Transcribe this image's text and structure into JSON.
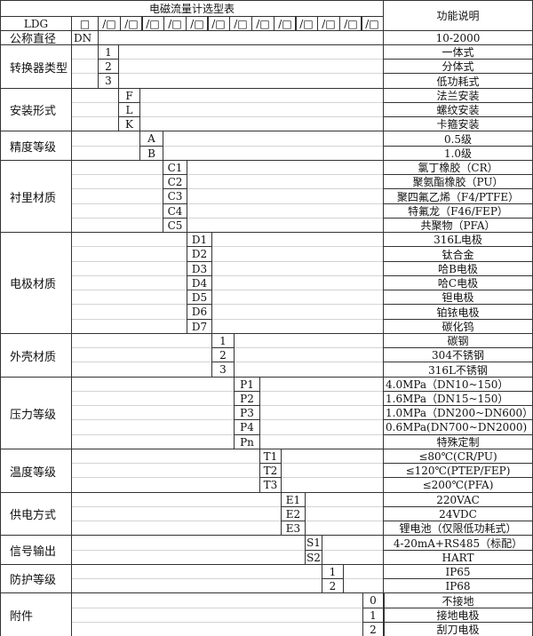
{
  "title": "电磁流量计选型表",
  "function_header": "功能说明",
  "model_row": {
    "model": "LDG",
    "first_box": "□",
    "slot_box": "/□",
    "slot_count": 13
  },
  "dn_row": {
    "label": "公称直径",
    "code": "DN",
    "desc": "10-2000"
  },
  "sections": [
    {
      "label": "转换器类型",
      "codes": [
        "1",
        "2",
        "3"
      ],
      "descs": [
        "一体式",
        "分体式",
        "低功耗式"
      ]
    },
    {
      "label": "安装形式",
      "codes": [
        "F",
        "L",
        "K"
      ],
      "descs": [
        "法兰安装",
        "螺纹安装",
        "卡箍安装"
      ]
    },
    {
      "label": "精度等级",
      "codes": [
        "A",
        "B"
      ],
      "descs": [
        "0.5级",
        "1.0级"
      ]
    },
    {
      "label": "衬里材质",
      "codes": [
        "C1",
        "C2",
        "C3",
        "C4",
        "C5"
      ],
      "descs": [
        "氯丁橡胶（CR）",
        "聚氨酯橡胶（PU）",
        "聚四氟乙烯（F4/PTFE）",
        "特氟龙（F46/FEP）",
        "共聚物（PFA）"
      ]
    },
    {
      "label": "电极材质",
      "codes": [
        "D1",
        "D2",
        "D3",
        "D4",
        "D5",
        "D6",
        "D7"
      ],
      "descs": [
        "316L电极",
        "钛合金",
        "哈B电极",
        "哈C电极",
        "钽电极",
        "铂铱电极",
        "碳化钨"
      ]
    },
    {
      "label": "外壳材质",
      "codes": [
        "1",
        "2",
        "3"
      ],
      "descs": [
        "碳钢",
        "304不锈钢",
        "316L不锈钢"
      ]
    },
    {
      "label": "压力等级",
      "codes": [
        "P1",
        "P2",
        "P3",
        "P4",
        "Pn"
      ],
      "descs": [
        "4.0MPa（DN10~150）",
        "1.6MPa（DN15~150）",
        "1.0MPa（DN200~DN600）",
        "0.6MPa(DN700~DN2000)",
        "特殊定制"
      ]
    },
    {
      "label": "温度等级",
      "codes": [
        "T1",
        "T2",
        "T3"
      ],
      "descs": [
        "≤80℃(CR/PU)",
        "≤120℃(PTEP/FEP)",
        "≤200℃(PFA)"
      ]
    },
    {
      "label": "供电方式",
      "codes": [
        "E1",
        "E2",
        "E3"
      ],
      "descs": [
        "220VAC",
        "24VDC",
        "锂电池（仅限低功耗式）"
      ]
    },
    {
      "label": "信号输出",
      "codes": [
        "S1",
        "S2"
      ],
      "descs": [
        "4-20mA+RS485（标配）",
        "HART"
      ]
    },
    {
      "label": "防护等级",
      "codes": [
        "1",
        "2"
      ],
      "descs": [
        "IP65",
        "IP68"
      ]
    },
    {
      "label": "附件",
      "codes": [
        "0",
        "1",
        "2"
      ],
      "descs": [
        "不接地",
        "接地电极",
        "刮刀电极"
      ]
    }
  ]
}
